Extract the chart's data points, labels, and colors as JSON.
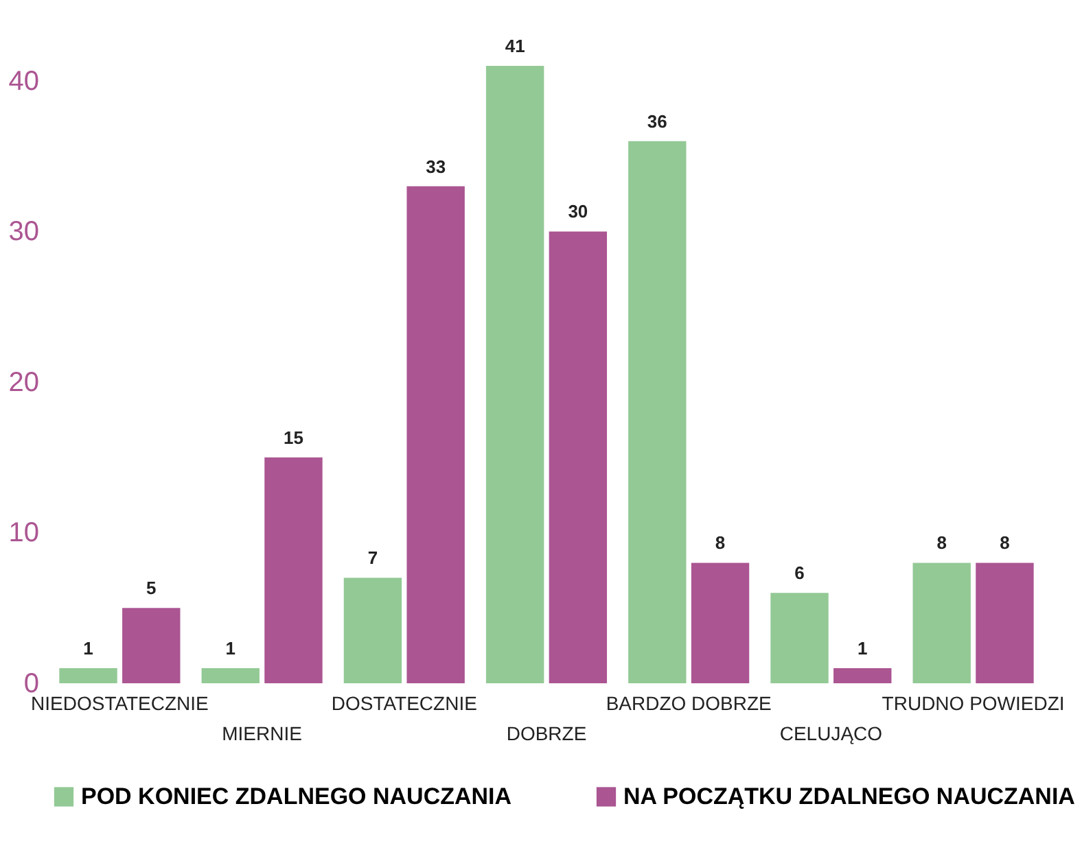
{
  "chart_data": {
    "type": "bar",
    "categories": [
      "NIEDOSTATECZNIE",
      "MIERNIE",
      "DOSTATECZNIE",
      "DOBRZE",
      "BARDZO DOBRZE",
      "CELUJĄCO",
      "TRUDNO POWIEDZI"
    ],
    "series": [
      {
        "name": "POD KONIEC ZDALNEGO NAUCZANIA",
        "color": "#93c995",
        "values": [
          1,
          1,
          7,
          41,
          36,
          6,
          8
        ]
      },
      {
        "name": "NA POCZĄTKU ZDALNEGO NAUCZANIA",
        "color": "#ab5592",
        "values": [
          5,
          15,
          33,
          30,
          8,
          1,
          8
        ]
      }
    ],
    "ylim": [
      0,
      41
    ],
    "yticks": [
      0,
      10,
      20,
      30,
      40
    ],
    "grid": false,
    "legend": "bottom",
    "data_labels": true
  }
}
